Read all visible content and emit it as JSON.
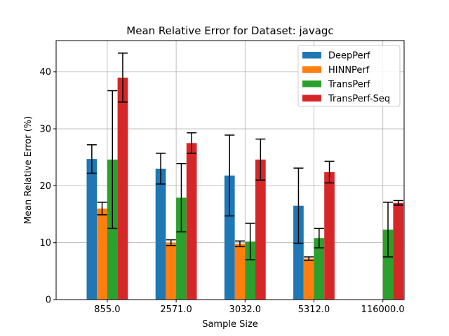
{
  "chart_data": {
    "type": "bar",
    "title": "Mean Relative Error for Dataset: javagc",
    "xlabel": "Sample Size",
    "ylabel": "Mean Relative Error (%)",
    "categories": [
      "855.0",
      "2571.0",
      "3032.0",
      "5312.0",
      "116000.0"
    ],
    "ylim": [
      0,
      45.5
    ],
    "yticks": [
      0,
      10,
      20,
      30,
      40
    ],
    "grid": true,
    "legend_position": "top-right",
    "series": [
      {
        "name": "DeepPerf",
        "color": "#1f77b4",
        "values": [
          24.7,
          23.0,
          21.8,
          16.5,
          null
        ],
        "errors": [
          2.5,
          2.7,
          7.1,
          6.6,
          null
        ]
      },
      {
        "name": "HINNPerf",
        "color": "#ff7f0e",
        "values": [
          16.0,
          10.0,
          9.8,
          7.2,
          null
        ],
        "errors": [
          1.1,
          0.5,
          0.5,
          0.3,
          null
        ]
      },
      {
        "name": "TransPerf",
        "color": "#2ca02c",
        "values": [
          24.6,
          17.9,
          10.2,
          10.8,
          12.3
        ],
        "errors": [
          12.1,
          6.0,
          3.2,
          1.7,
          4.8
        ]
      },
      {
        "name": "TransPerf-Seq",
        "color": "#d62728",
        "values": [
          39.0,
          27.5,
          24.6,
          22.4,
          17.0
        ],
        "errors": [
          4.3,
          1.8,
          3.6,
          1.9,
          0.4
        ]
      }
    ]
  }
}
